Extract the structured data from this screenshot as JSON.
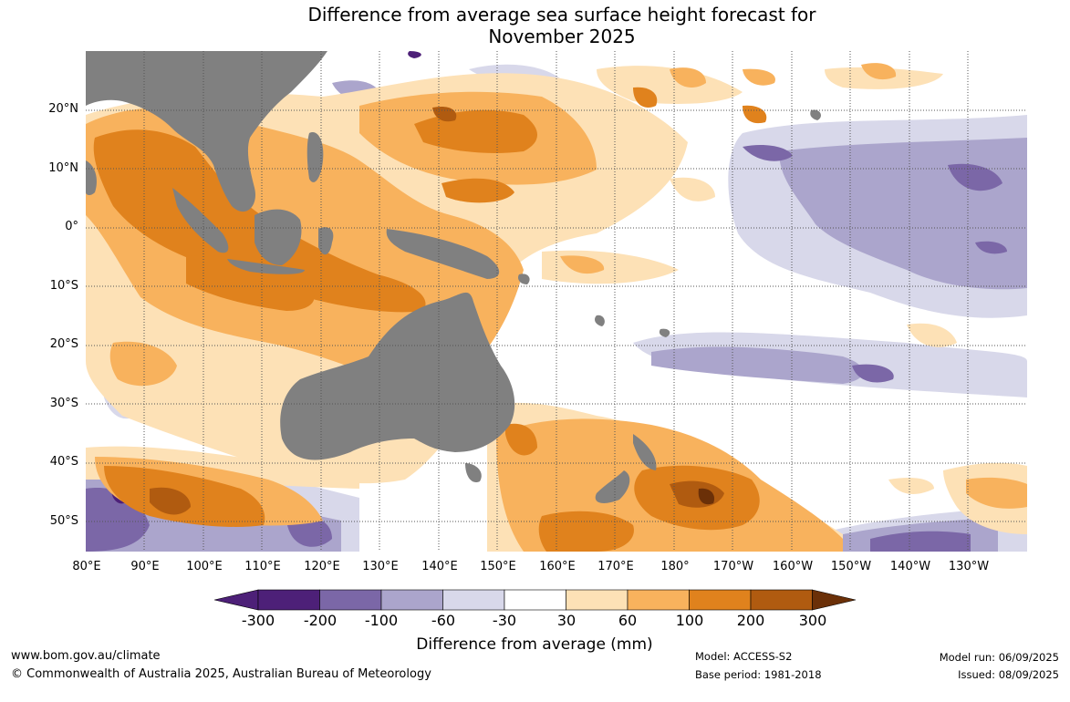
{
  "title_line1": "Difference from average sea surface height forecast for",
  "title_line2": "November 2025",
  "lat_labels": [
    "20°N",
    "10°N",
    "0°",
    "10°S",
    "20°S",
    "30°S",
    "40°S",
    "50°S"
  ],
  "lon_labels": [
    "80°E",
    "90°E",
    "100°E",
    "110°E",
    "120°E",
    "130°E",
    "140°E",
    "150°E",
    "160°E",
    "170°E",
    "180°",
    "170°W",
    "160°W",
    "150°W",
    "140°W",
    "130°W"
  ],
  "colorbar": {
    "ticks": [
      "-300",
      "-200",
      "-100",
      "-60",
      "-30",
      "30",
      "60",
      "100",
      "200",
      "300"
    ],
    "colors": [
      "#4d2078",
      "#7b67a7",
      "#aba5cc",
      "#d8d8ea",
      "#ffffff",
      "#fde1b6",
      "#f8b25d",
      "#e0821d",
      "#b05b10",
      "#6b3008"
    ],
    "label": "Difference from average (mm)"
  },
  "colors": {
    "land": "#808080",
    "grid": "#555555"
  },
  "footer": {
    "website": "www.bom.gov.au/climate",
    "copyright": "© Commonwealth of Australia 2025, Australian Bureau of Meteorology",
    "model": "Model: ACCESS-S2",
    "base_period": "Base period: 1981-2018",
    "model_run": "Model run: 06/09/2025",
    "issued": "Issued: 08/09/2025"
  }
}
